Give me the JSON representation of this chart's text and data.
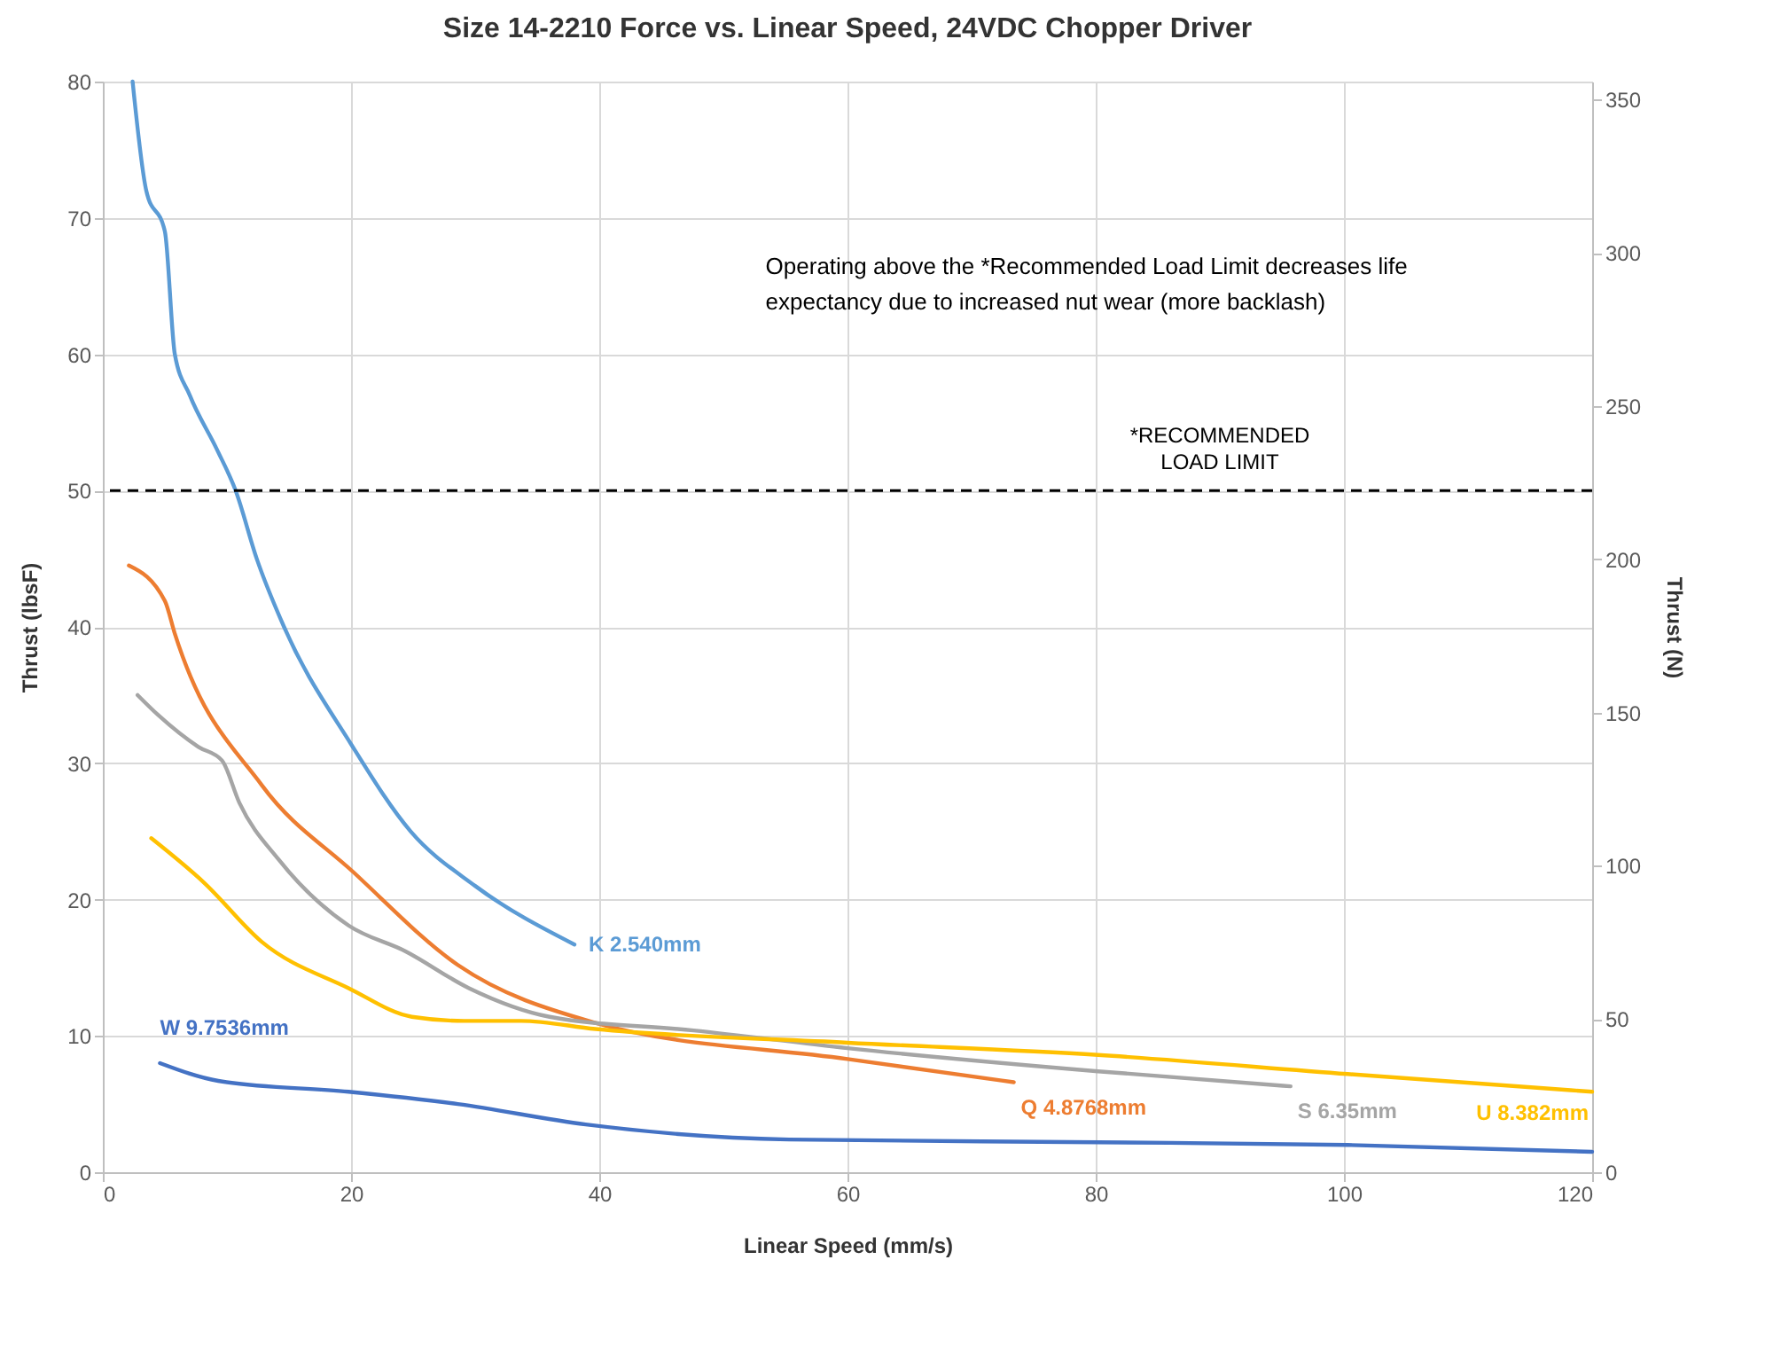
{
  "chart_data": {
    "type": "line",
    "title": "Size 14-2210 Force vs. Linear Speed, 24VDC Chopper Driver",
    "xlabel": "Linear Speed (mm/s)",
    "ylabel": "Thrust (lbsF)",
    "y2label": "Thrust (N)",
    "xlim": [
      0,
      120
    ],
    "xticks": [
      0,
      20,
      40,
      60,
      80,
      100,
      120
    ],
    "ylim": [
      0,
      80
    ],
    "yticks": [
      0,
      10,
      20,
      30,
      40,
      50,
      60,
      70,
      80
    ],
    "y2lim": [
      0,
      355.9
    ],
    "y2ticks": [
      0,
      50,
      100,
      150,
      200,
      250,
      300,
      350
    ],
    "grid": true,
    "legend": false,
    "line_style": "solid",
    "marker": "none",
    "series": [
      {
        "name": "K 2.540mm",
        "color": "#5b9bd5",
        "x": [
          2.4,
          3.5,
          5,
          5.8,
          7,
          9.2,
          10.7,
          12.4,
          14.6,
          20,
          24.8,
          30,
          38
        ],
        "values": [
          80,
          72,
          69,
          60,
          57,
          53,
          50,
          45,
          40,
          31.4,
          25,
          21,
          16.7
        ]
      },
      {
        "name": "Q 4.8768mm",
        "color": "#ed7d31",
        "x": [
          2.1,
          5,
          5.8,
          12.8,
          20.2,
          28.6,
          39.5,
          60,
          73.4
        ],
        "values": [
          44.5,
          41.9,
          39.5,
          28.4,
          22,
          15.2,
          11,
          8.3,
          6.6
        ]
      },
      {
        "name": "S 6.35mm",
        "color": "#a5a5a5",
        "x": [
          2.8,
          4.5,
          7.7,
          9.6,
          11,
          14.2,
          19.8,
          24.4,
          29.5,
          36,
          47.6,
          60,
          80.2,
          95.7
        ],
        "values": [
          35,
          33.5,
          31.2,
          30.2,
          27.1,
          22.9,
          18.1,
          16.2,
          13.5,
          11.4,
          10.4,
          9.1,
          7.4,
          6.3
        ]
      },
      {
        "name": "U 8.382mm",
        "color": "#ffc000",
        "x": [
          3.9,
          8.2,
          12.8,
          19.8,
          24.9,
          29.1,
          33.7,
          39.7,
          60,
          80.2,
          100.3,
          120
        ],
        "values": [
          24.5,
          21.2,
          16.9,
          13.5,
          11.4,
          11.1,
          11.1,
          10.5,
          9.5,
          8.6,
          7.2,
          5.9
        ]
      },
      {
        "name": "W 9.7536mm",
        "color": "#4472c4",
        "x": [
          4.6,
          9.3,
          19.8,
          28.6,
          38.9,
          55.3,
          80.2,
          100.3,
          120
        ],
        "values": [
          8,
          6.7,
          5.9,
          5,
          3.5,
          2.4,
          2.2,
          2,
          1.5
        ]
      }
    ],
    "ref_lines": [
      {
        "axis": "y",
        "value": 50,
        "label": "*RECOMMENDED LOAD LIMIT",
        "color": "#000000",
        "line_style": "dashed"
      }
    ],
    "annotations": [
      "Operating above the *Recommended Load Limit decreases life expectancy due to increased nut wear (more backlash)"
    ]
  }
}
